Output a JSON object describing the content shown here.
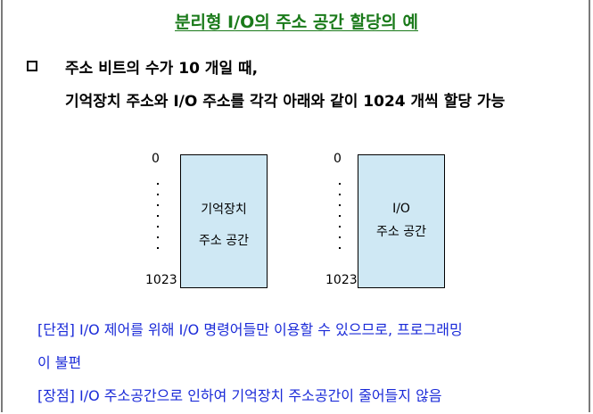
{
  "title": "분리형 I/O의 주소 공간 할당의 예",
  "bullet_line1": "주소 비트의 수가 10 개일 때,",
  "bullet_line2": "기억장치 주소와 I/O 주소를 각각 아래와 같이 1024 개씩 할당 가능",
  "memory_box": {
    "label_line1": "기억장치",
    "label_line2": "주소 공간",
    "start_addr": "0",
    "end_addr": "1023",
    "fill_color": "#cfe8f4"
  },
  "io_box": {
    "label_line1": "I/O",
    "label_line2": "주소 공간",
    "start_addr": "0",
    "end_addr": "1023",
    "fill_color": "#cfe8f4"
  },
  "disadvantage_line1": "[단점] I/O 제어를 위해 I/O 명령어들만 이용할 수 있으므로, 프로그래밍",
  "disadvantage_line2": "이 불편",
  "advantage": "[장점] I/O 주소공간으로 인하여 기억장치 주소공간이 줄어들지 않음",
  "colors": {
    "title": "#1a7a1a",
    "notes": "#1a2ad8",
    "box_border": "#000000"
  }
}
